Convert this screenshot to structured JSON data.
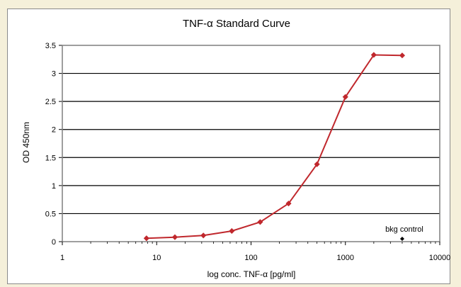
{
  "chart_data": {
    "type": "line",
    "title": "TNF-α Standard Curve",
    "xlabel": "log conc. TNF-α [pg/ml]",
    "ylabel": "OD 450nm",
    "x_scale": "log",
    "xlim": [
      1,
      10000
    ],
    "ylim": [
      0,
      3.5
    ],
    "x_ticks": [
      "1",
      "10",
      "100",
      "1000",
      "10000"
    ],
    "y_ticks": [
      "0",
      "0.5",
      "1",
      "1.5",
      "2",
      "2.5",
      "3",
      "3.5"
    ],
    "grid": "horizontal",
    "colors": {
      "series": "#c0282d",
      "marker": "#c0282d",
      "control": "#000000",
      "grid": "#000000",
      "plot_border": "#7f7f7f"
    },
    "series": [
      {
        "x": [
          7.8,
          15.6,
          31.25,
          62.5,
          125,
          250,
          500,
          1000,
          2000,
          4000
        ],
        "y": [
          0.06,
          0.08,
          0.11,
          0.19,
          0.35,
          0.68,
          1.38,
          2.58,
          3.33,
          3.32
        ]
      }
    ],
    "annotations": [
      {
        "text": "bkg control",
        "x": 4000,
        "y": 0.05
      }
    ]
  }
}
